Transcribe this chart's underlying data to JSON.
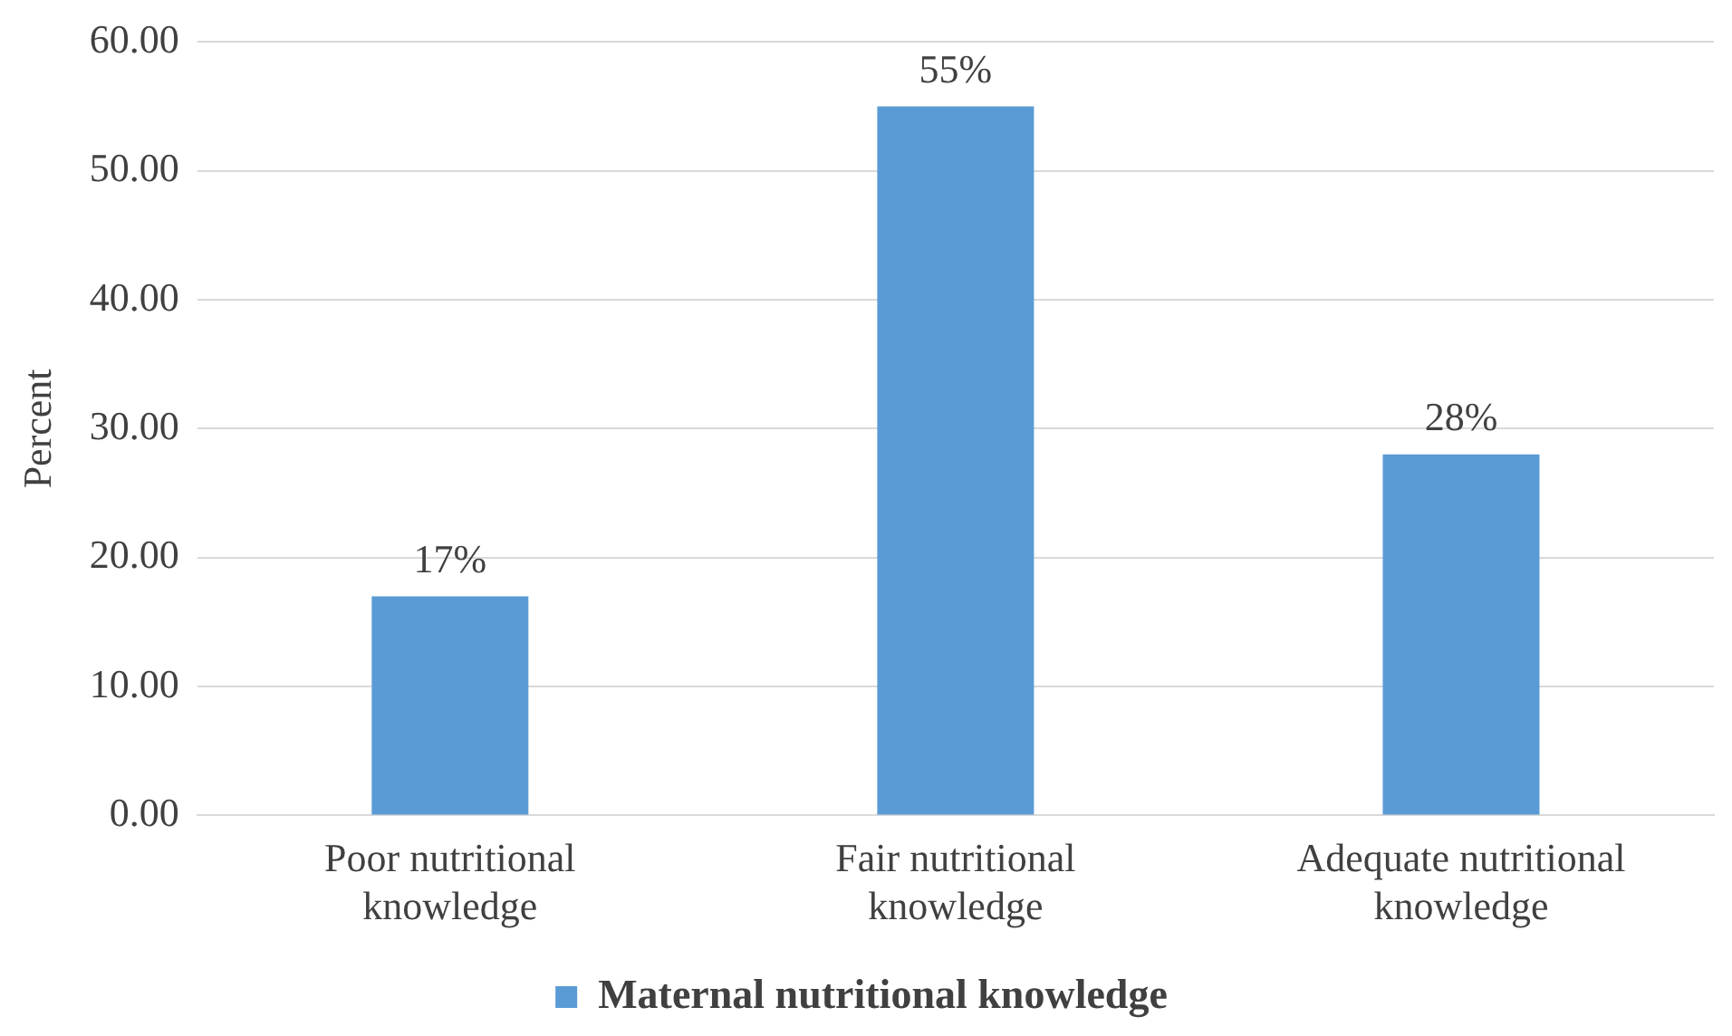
{
  "chart_data": {
    "type": "bar",
    "ylabel": "Percent",
    "categories": [
      "Poor nutritional knowledge",
      "Fair nutritional knowledge",
      "Adequate nutritional knowledge"
    ],
    "series": [
      {
        "name": "Maternal nutritional knowledge",
        "color": "#5b9bd5",
        "values": [
          17,
          55,
          28
        ],
        "value_labels": [
          "17%",
          "55%",
          "28%"
        ]
      }
    ],
    "ylim": [
      0,
      60
    ],
    "yticks": [
      {
        "value": 0,
        "label": "0.00"
      },
      {
        "value": 10,
        "label": "10.00"
      },
      {
        "value": 20,
        "label": "20.00"
      },
      {
        "value": 30,
        "label": "30.00"
      },
      {
        "value": 40,
        "label": "40.00"
      },
      {
        "value": 50,
        "label": "50.00"
      },
      {
        "value": 60,
        "label": "60.00"
      }
    ],
    "grid": "y",
    "legend": "bottom"
  }
}
